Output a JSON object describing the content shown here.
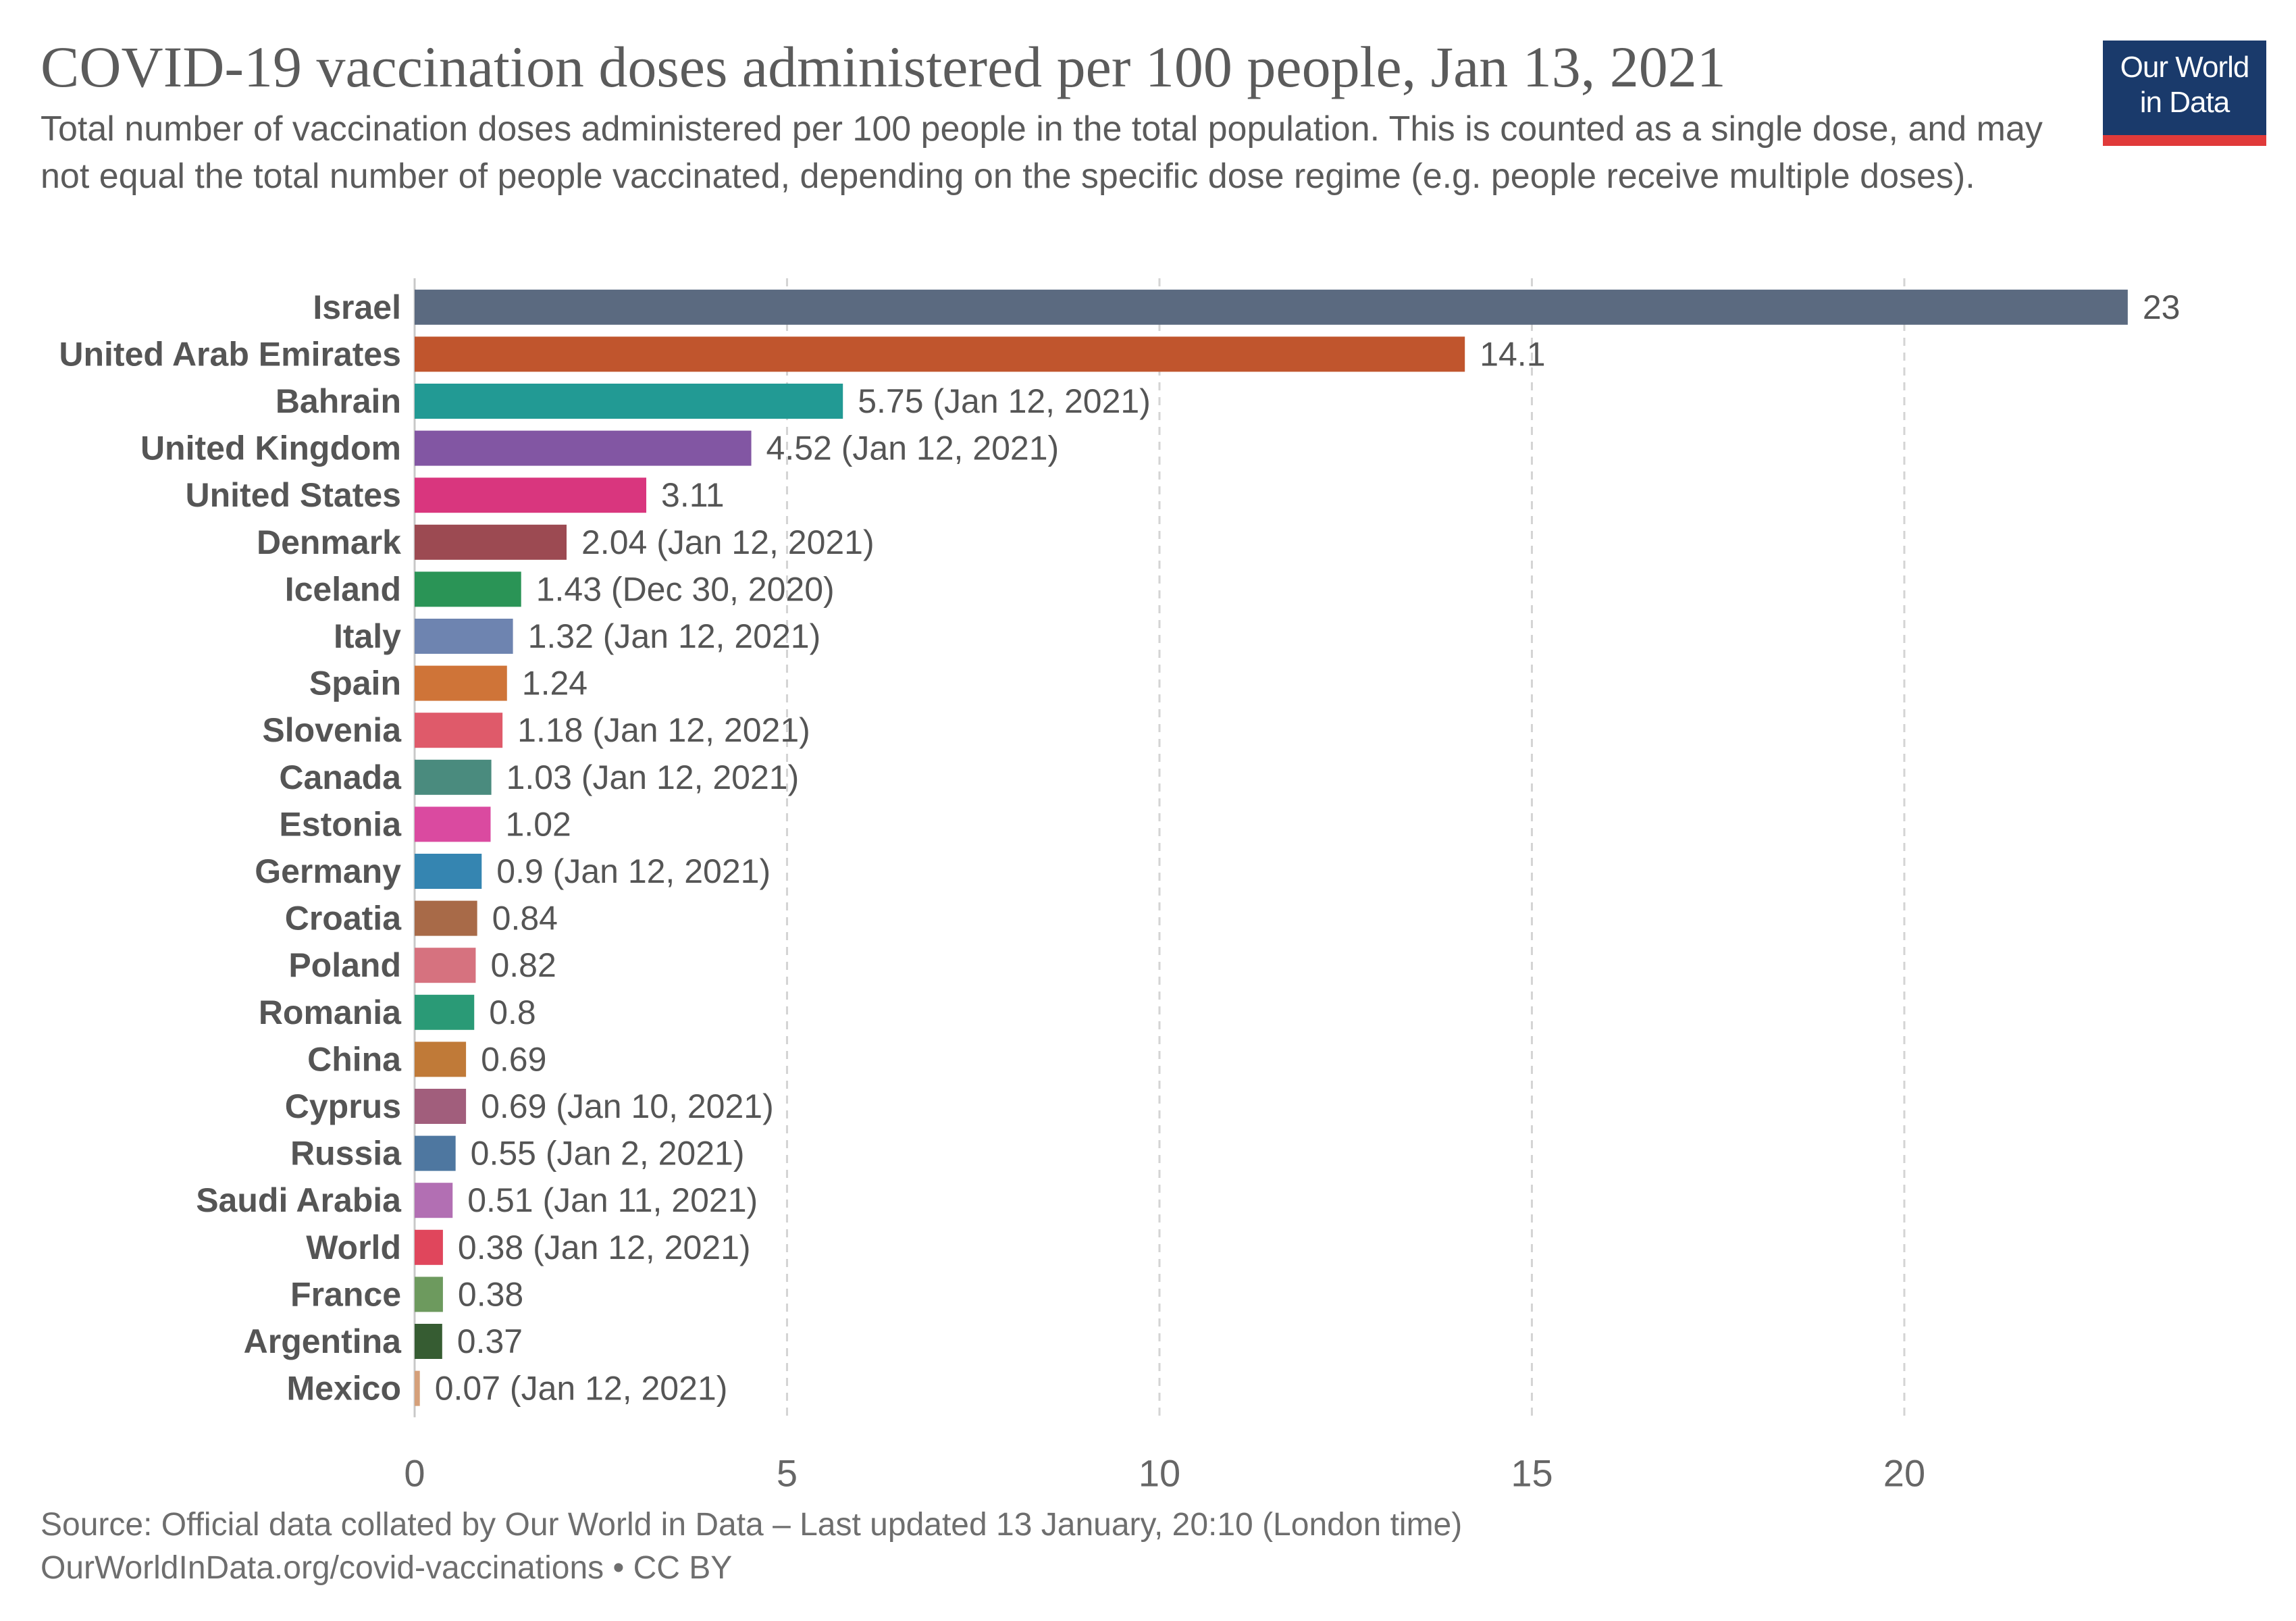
{
  "title": "COVID-19 vaccination doses administered per 100 people, Jan 13, 2021",
  "subtitle": "Total number of vaccination doses administered per 100 people in the total population. This is counted as a single dose, and may not equal the total number of people vaccinated, depending on the specific dose regime (e.g. people receive multiple doses).",
  "logo": {
    "line1": "Our World",
    "line2": "in Data"
  },
  "footer": {
    "source": "Source: Official data collated by Our World in Data – Last updated 13 January, 20:10 (London time)",
    "url": "OurWorldInData.org/covid-vaccinations • CC BY"
  },
  "chart_data": {
    "type": "bar",
    "orientation": "horizontal",
    "title": "COVID-19 vaccination doses administered per 100 people, Jan 13, 2021",
    "xlabel": "",
    "ylabel": "",
    "xlim": [
      0,
      23.5
    ],
    "xticks": [
      0,
      5,
      10,
      15,
      20
    ],
    "grid": true,
    "categories": [
      "Israel",
      "United Arab Emirates",
      "Bahrain",
      "United Kingdom",
      "United States",
      "Denmark",
      "Iceland",
      "Italy",
      "Spain",
      "Slovenia",
      "Canada",
      "Estonia",
      "Germany",
      "Croatia",
      "Poland",
      "Romania",
      "China",
      "Cyprus",
      "Russia",
      "Saudi Arabia",
      "World",
      "France",
      "Argentina",
      "Mexico"
    ],
    "values": [
      23,
      14.1,
      5.75,
      4.52,
      3.11,
      2.04,
      1.43,
      1.32,
      1.24,
      1.18,
      1.03,
      1.02,
      0.9,
      0.84,
      0.82,
      0.8,
      0.69,
      0.69,
      0.55,
      0.51,
      0.38,
      0.38,
      0.37,
      0.07
    ],
    "value_labels": [
      "23",
      "14.1",
      "5.75 (Jan 12, 2021)",
      "4.52 (Jan 12, 2021)",
      "3.11",
      "2.04 (Jan 12, 2021)",
      "1.43 (Dec 30, 2020)",
      "1.32 (Jan 12, 2021)",
      "1.24",
      "1.18 (Jan 12, 2021)",
      "1.03 (Jan 12, 2021)",
      "1.02",
      "0.9 (Jan 12, 2021)",
      "0.84",
      "0.82",
      "0.8",
      "0.69",
      "0.69 (Jan 10, 2021)",
      "0.55 (Jan 2, 2021)",
      "0.51 (Jan 11, 2021)",
      "0.38 (Jan 12, 2021)",
      "0.38",
      "0.37",
      "0.07 (Jan 12, 2021)"
    ],
    "colors": [
      "#5b6a80",
      "#c0552d",
      "#229a94",
      "#8256a3",
      "#d9367e",
      "#9c4a52",
      "#2a9456",
      "#6e84b0",
      "#cf7438",
      "#df5a6a",
      "#4a8b7e",
      "#da4aa0",
      "#3585b1",
      "#a86a48",
      "#d6727f",
      "#2a9a76",
      "#c07a38",
      "#a15e7c",
      "#4e77a0",
      "#b26fb3",
      "#e0465c",
      "#6d9a5e",
      "#365c32",
      "#d5a07a"
    ]
  }
}
